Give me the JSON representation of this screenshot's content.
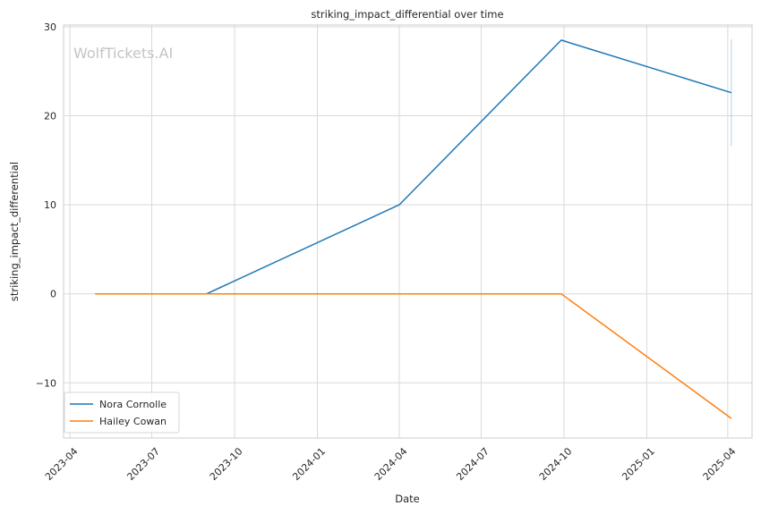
{
  "chart_data": {
    "type": "line",
    "title": "striking_impact_differential over time",
    "xlabel": "Date",
    "ylabel": "striking_impact_differential",
    "watermark": "WolfTickets.AI",
    "x_type": "date",
    "xlim": [
      "2023-03-25",
      "2025-04-28"
    ],
    "ylim": [
      -16.2,
      30.2
    ],
    "x_ticks": [
      {
        "date": "2023-04-01",
        "label": "2023-04"
      },
      {
        "date": "2023-07-01",
        "label": "2023-07"
      },
      {
        "date": "2023-10-01",
        "label": "2023-10"
      },
      {
        "date": "2024-01-01",
        "label": "2024-01"
      },
      {
        "date": "2024-04-01",
        "label": "2024-04"
      },
      {
        "date": "2024-07-01",
        "label": "2024-07"
      },
      {
        "date": "2024-10-01",
        "label": "2024-10"
      },
      {
        "date": "2025-01-01",
        "label": "2025-01"
      },
      {
        "date": "2025-04-01",
        "label": "2025-04"
      }
    ],
    "y_ticks": [
      {
        "value": 30,
        "label": "30"
      },
      {
        "value": 20,
        "label": "20"
      },
      {
        "value": 10,
        "label": "10"
      },
      {
        "value": 0,
        "label": "0"
      },
      {
        "value": -10,
        "label": "−10"
      }
    ],
    "grid": true,
    "legend_position": "lower-left",
    "series": [
      {
        "name": "Nora Cornolle",
        "color": "#1f77b4",
        "points": [
          {
            "x": "2023-08-31",
            "y": 0
          },
          {
            "x": "2024-04-01",
            "y": 10
          },
          {
            "x": "2024-09-28",
            "y": 28.5
          },
          {
            "x": "2025-04-05",
            "y": 22.6
          }
        ],
        "error_bars": [
          {
            "x": "2025-04-05",
            "low": 16.6,
            "high": 28.6
          }
        ]
      },
      {
        "name": "Hailey Cowan",
        "color": "#ff7f0e",
        "points": [
          {
            "x": "2023-04-29",
            "y": 0
          },
          {
            "x": "2024-09-28",
            "y": 0
          },
          {
            "x": "2025-04-05",
            "y": -14
          }
        ]
      }
    ]
  }
}
